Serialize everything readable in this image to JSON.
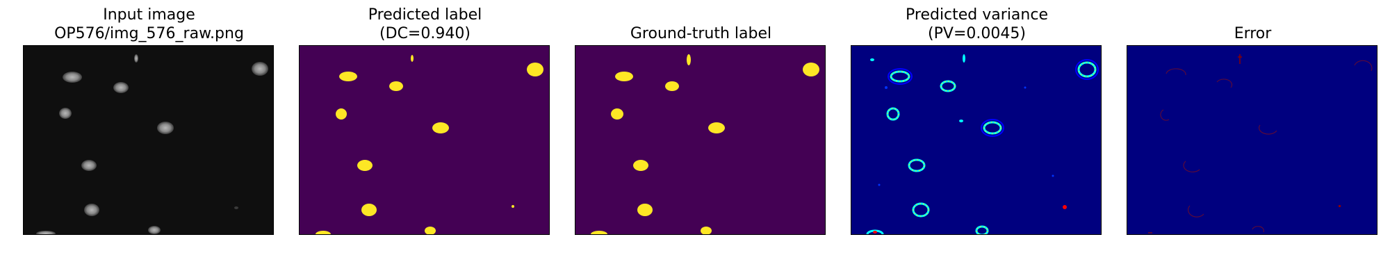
{
  "panels": [
    {
      "title_line1": "Input image",
      "title_line2": "OP576/img_576_raw.png"
    },
    {
      "title_line1": "Predicted label",
      "title_line2": "(DC=0.940)"
    },
    {
      "title_line1": "",
      "title_line2": "Ground-truth label"
    },
    {
      "title_line1": "Predicted variance",
      "title_line2": "(PV=0.0045)"
    },
    {
      "title_line1": "",
      "title_line2": "Error"
    }
  ],
  "colors": {
    "raw_background": "#0f0f0f",
    "raw_nucleus": "#9a9a9a",
    "label_background": "#440154",
    "label_foreground": "#fde725",
    "variance_background": "#00007f",
    "variance_low": "#0000ff",
    "variance_mid": "#00ffff",
    "variance_high": "#ffff00",
    "variance_peak": "#ff0000",
    "error_background": "#00007f",
    "error_mark": "#5a0a3a"
  }
}
